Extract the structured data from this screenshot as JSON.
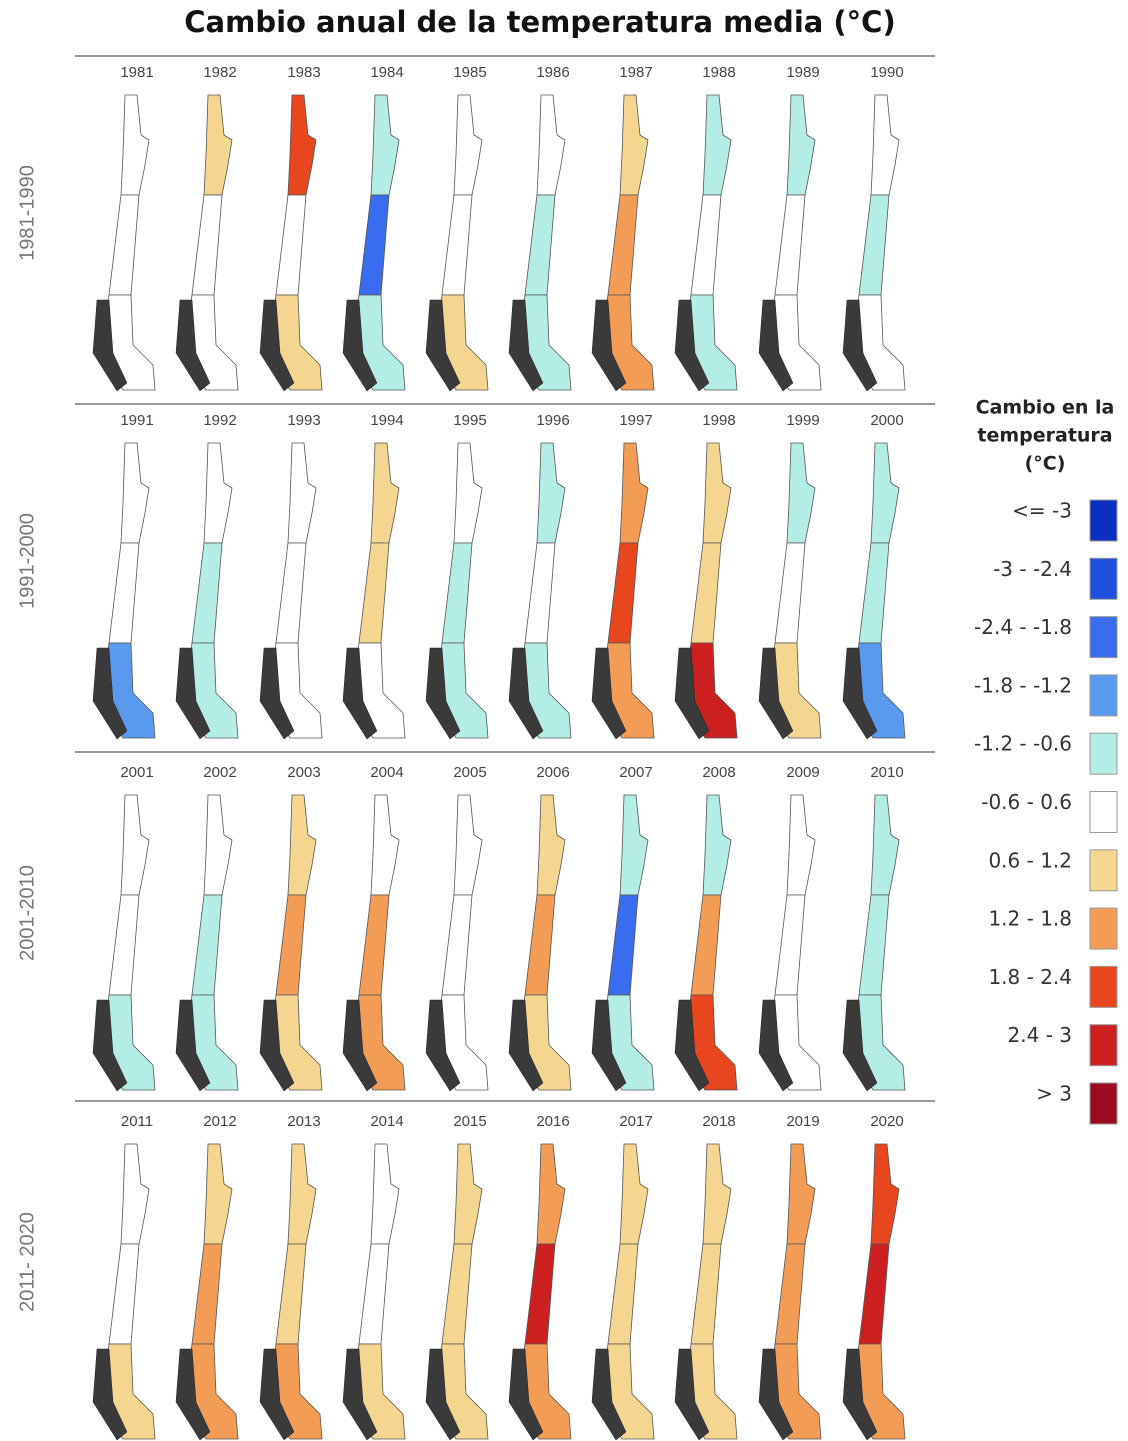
{
  "title": "Cambio anual de la temperatura media (°C)",
  "rows": [
    {
      "label": "1981-1990",
      "years": [
        "1981",
        "1982",
        "1983",
        "1984",
        "1985",
        "1986",
        "1987",
        "1988",
        "1989",
        "1990"
      ]
    },
    {
      "label": "1991-2000",
      "years": [
        "1991",
        "1992",
        "1993",
        "1994",
        "1995",
        "1996",
        "1997",
        "1998",
        "1999",
        "2000"
      ]
    },
    {
      "label": "2001-2010",
      "years": [
        "2001",
        "2002",
        "2003",
        "2004",
        "2005",
        "2006",
        "2007",
        "2008",
        "2009",
        "2010"
      ]
    },
    {
      "label": "2011- 2020",
      "years": [
        "2011",
        "2012",
        "2013",
        "2014",
        "2015",
        "2016",
        "2017",
        "2018",
        "2019",
        "2020"
      ]
    }
  ],
  "legend": {
    "title_lines": [
      "Cambio en la",
      "temperatura",
      "(°C)"
    ],
    "items": [
      {
        "label": "<= -3",
        "color": "#0a2fc0"
      },
      {
        "label": "-3 - -2.4",
        "color": "#1f4fdc"
      },
      {
        "label": "-2.4 - -1.8",
        "color": "#3a6cf0"
      },
      {
        "label": "-1.8 - -1.2",
        "color": "#5a9aee"
      },
      {
        "label": "-1.2 - -0.6",
        "color": "#b4ece6"
      },
      {
        "label": "-0.6 - 0.6",
        "color": "#ffffff"
      },
      {
        "label": "0.6 - 1.2",
        "color": "#f5d690"
      },
      {
        "label": "1.2 - 1.8",
        "color": "#f39c55"
      },
      {
        "label": "1.8 - 2.4",
        "color": "#e8461e"
      },
      {
        "label": "2.4 - 3",
        "color": "#cc2020"
      },
      {
        "label": "> 3",
        "color": "#9b0a1e"
      }
    ]
  }
}
